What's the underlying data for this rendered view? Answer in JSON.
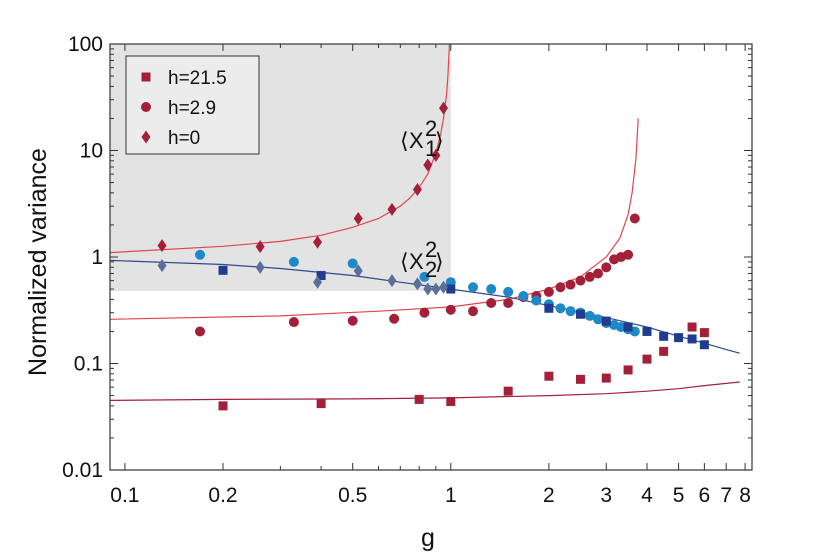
{
  "chart_data": {
    "type": "scatter",
    "title": "",
    "xlabel": "g",
    "ylabel": "Normalized variance",
    "xscale": "log",
    "yscale": "log",
    "xlim": [
      0.09,
      8.4
    ],
    "ylim": [
      0.01,
      100
    ],
    "xticks": [
      {
        "value": 0.1,
        "label": "0.1"
      },
      {
        "value": 0.2,
        "label": "0.2"
      },
      {
        "value": 0.5,
        "label": "0.5"
      },
      {
        "value": 1,
        "label": "1"
      },
      {
        "value": 2,
        "label": "2"
      },
      {
        "value": 3,
        "label": "3"
      },
      {
        "value": 4,
        "label": "4"
      },
      {
        "value": 5,
        "label": "5"
      },
      {
        "value": 6,
        "label": "6"
      },
      {
        "value": 7,
        "label": "7"
      },
      {
        "value": 8,
        "label": "8"
      }
    ],
    "yticks": [
      {
        "value": 0.01,
        "label": "0.01"
      },
      {
        "value": 0.1,
        "label": "0.1"
      },
      {
        "value": 1,
        "label": "1"
      },
      {
        "value": 10,
        "label": "10"
      },
      {
        "value": 100,
        "label": "100"
      }
    ],
    "shaded_region": {
      "x": [
        0.09,
        1.0
      ],
      "y": [
        0.48,
        100
      ],
      "color": "#e3e3e3"
    },
    "grid": false,
    "legend_position": "top-left",
    "legend": [
      {
        "label": "h=21.5",
        "marker": "square",
        "color": "#a3203a"
      },
      {
        "label": "h=2.9",
        "marker": "circle",
        "color": "#a3203a"
      },
      {
        "label": "h=0",
        "marker": "diamond",
        "color": "#a3203a"
      }
    ],
    "annotations": [
      {
        "base": "X",
        "sub": "1",
        "sup": "2",
        "x": 0.76,
        "y": 12.5
      },
      {
        "base": "X",
        "sub": "2",
        "sup": "2",
        "x": 0.76,
        "y": 0.92
      }
    ],
    "series": [
      {
        "marker": "square",
        "color": "#a3203a",
        "x": [
          0.2,
          0.4,
          0.8,
          1.0,
          1.5,
          2.0,
          2.5,
          3.0,
          3.5,
          4.0,
          4.5,
          5.5,
          6.0
        ],
        "y": [
          0.04,
          0.042,
          0.046,
          0.044,
          0.055,
          0.076,
          0.071,
          0.073,
          0.087,
          0.11,
          0.13,
          0.22,
          0.195
        ]
      },
      {
        "marker": "circle",
        "color": "#a3203a",
        "x": [
          0.17,
          0.33,
          0.5,
          0.67,
          0.83,
          1.0,
          1.17,
          1.33,
          1.5,
          1.67,
          1.83,
          2.0,
          2.17,
          2.33,
          2.5,
          2.67,
          2.83,
          3.0,
          3.17,
          3.33,
          3.5,
          3.67
        ],
        "y": [
          0.2,
          0.245,
          0.252,
          0.263,
          0.3,
          0.32,
          0.31,
          0.37,
          0.37,
          0.42,
          0.43,
          0.47,
          0.52,
          0.55,
          0.6,
          0.65,
          0.7,
          0.8,
          0.95,
          1.0,
          1.05,
          2.3
        ]
      },
      {
        "marker": "diamond",
        "color": "#a3203a",
        "x": [
          0.13,
          0.26,
          0.39,
          0.52,
          0.66,
          0.79,
          0.85,
          0.9,
          0.95
        ],
        "y": [
          1.28,
          1.25,
          1.38,
          2.3,
          2.8,
          4.3,
          7.3,
          9.0,
          25
        ]
      },
      {
        "marker": "circle",
        "color": "#1e88c8",
        "x": [
          0.17,
          0.33,
          0.5,
          0.83,
          1.0,
          1.17,
          1.33,
          1.5,
          1.67,
          1.83,
          2.0,
          2.17,
          2.33,
          2.5,
          2.67,
          2.83,
          3.0,
          3.17,
          3.33,
          3.5,
          3.67
        ],
        "y": [
          1.05,
          0.9,
          0.87,
          0.65,
          0.58,
          0.52,
          0.5,
          0.47,
          0.43,
          0.39,
          0.36,
          0.33,
          0.31,
          0.3,
          0.28,
          0.26,
          0.24,
          0.23,
          0.22,
          0.21,
          0.2
        ]
      },
      {
        "marker": "square",
        "color": "#1f3c8f",
        "x": [
          0.2,
          0.4,
          1.0,
          2.0,
          2.5,
          3.0,
          3.5,
          4.0,
          4.5,
          5.0,
          5.5,
          6.0
        ],
        "y": [
          0.75,
          0.67,
          0.5,
          0.33,
          0.29,
          0.25,
          0.22,
          0.2,
          0.18,
          0.175,
          0.17,
          0.15
        ]
      },
      {
        "marker": "diamond",
        "color": "#5a6f9c",
        "x": [
          0.13,
          0.26,
          0.39,
          0.52,
          0.66,
          0.79,
          0.85,
          0.9,
          0.95
        ],
        "y": [
          0.83,
          0.8,
          0.58,
          0.74,
          0.6,
          0.56,
          0.5,
          0.5,
          0.52
        ]
      }
    ],
    "curves": [
      {
        "color": "#e0474c",
        "width": 1.2,
        "x": [
          0.09,
          0.2,
          0.3,
          0.4,
          0.5,
          0.6,
          0.7,
          0.75,
          0.8,
          0.85,
          0.9,
          0.93,
          0.95,
          0.97,
          0.98,
          0.99
        ],
        "y": [
          1.1,
          1.26,
          1.4,
          1.6,
          1.9,
          2.3,
          3.0,
          3.6,
          4.5,
          6.0,
          9.5,
          14,
          20,
          33,
          50,
          100
        ]
      },
      {
        "color": "#e0474c",
        "width": 1.2,
        "x": [
          0.09,
          0.3,
          0.6,
          1.0,
          1.5,
          2.0,
          2.5,
          3.0,
          3.3,
          3.5,
          3.6,
          3.7,
          3.76
        ],
        "y": [
          0.26,
          0.28,
          0.31,
          0.34,
          0.4,
          0.5,
          0.65,
          1.0,
          1.5,
          2.5,
          4.0,
          8.5,
          20
        ]
      },
      {
        "color": "#a3203a",
        "width": 1.2,
        "x": [
          0.09,
          0.2,
          0.5,
          1.0,
          2.0,
          3.0,
          4.0,
          5.0,
          6.0,
          7.0,
          7.7
        ],
        "y": [
          0.045,
          0.046,
          0.0465,
          0.0475,
          0.05,
          0.052,
          0.055,
          0.058,
          0.062,
          0.065,
          0.067
        ]
      },
      {
        "color": "#2e4a8a",
        "width": 1.2,
        "x": [
          0.09,
          0.2,
          0.3,
          0.5,
          0.7,
          1.0,
          1.5,
          2.0,
          3.0,
          4.0,
          5.0,
          6.0,
          7.0,
          7.7
        ],
        "y": [
          0.93,
          0.85,
          0.78,
          0.67,
          0.58,
          0.5,
          0.42,
          0.35,
          0.27,
          0.22,
          0.18,
          0.155,
          0.135,
          0.125
        ]
      }
    ]
  }
}
